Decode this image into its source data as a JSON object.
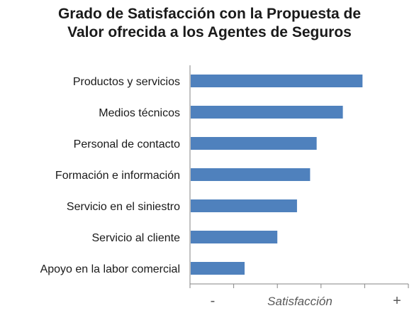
{
  "chart_data": {
    "type": "bar",
    "orientation": "horizontal",
    "title": [
      "Grado de Satisfacción con la Propuesta de",
      "Valor ofrecida a los Agentes de Seguros"
    ],
    "categories": [
      "Productos y servicios",
      "Medios técnicos",
      "Personal de contacto",
      "Formación e información",
      "Servicio en el siniestro",
      "Servicio al cliente",
      "Apoyo en la labor comercial"
    ],
    "values": [
      0.79,
      0.7,
      0.58,
      0.55,
      0.49,
      0.4,
      0.25
    ],
    "xlim": [
      0,
      1
    ],
    "x_ticks_count": 5,
    "xlabel": "Satisfacción",
    "x_min_label": "-",
    "x_max_label": "+",
    "grid": false,
    "bar_color": "#4f81bd"
  }
}
